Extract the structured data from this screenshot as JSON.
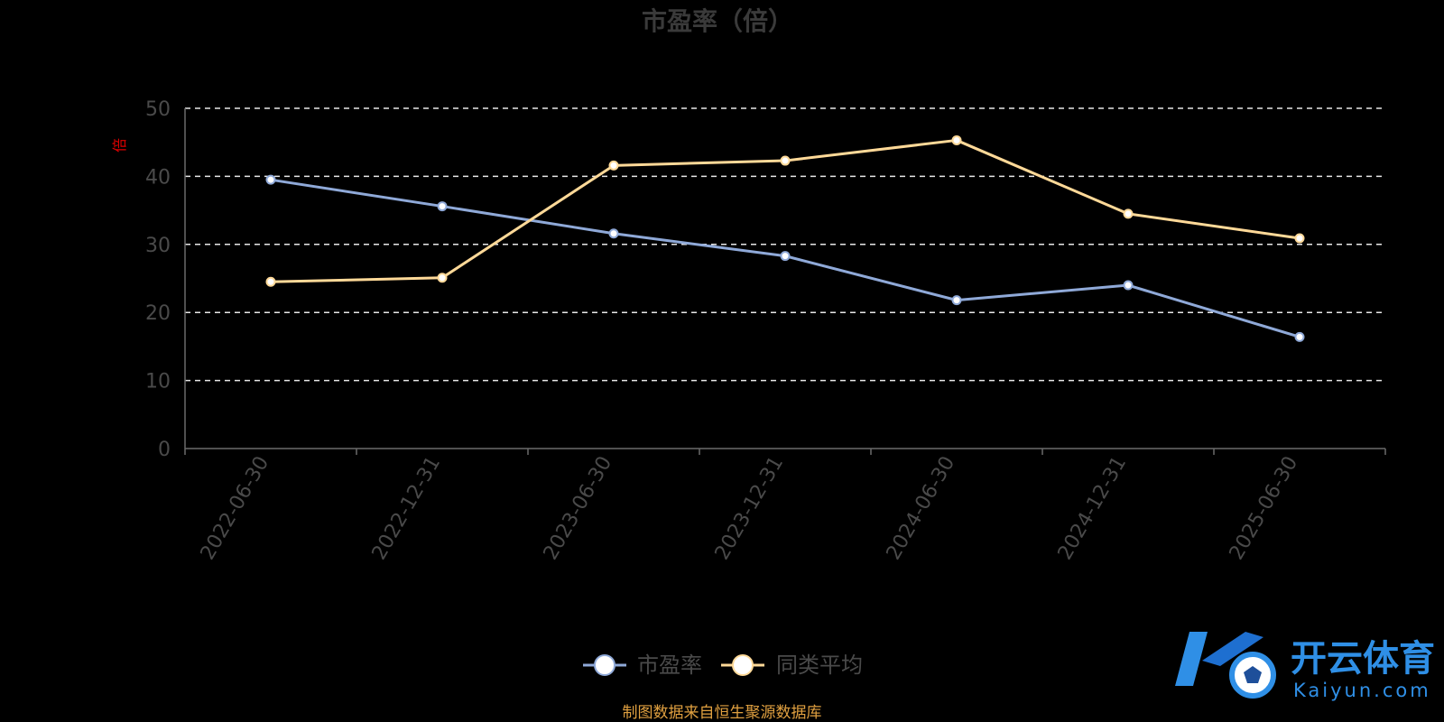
{
  "chart_data": {
    "type": "line",
    "title": "市盈率（倍）",
    "ylabel": "倍",
    "ylim": [
      0,
      50
    ],
    "yticks": [
      0,
      10,
      20,
      30,
      40,
      50
    ],
    "categories": [
      "2022-06-30",
      "2022-12-31",
      "2023-06-30",
      "2023-12-31",
      "2024-06-30",
      "2024-12-31",
      "2025-06-30"
    ],
    "grid": true,
    "legend_position": "bottom",
    "series": [
      {
        "name": "市盈率",
        "values": [
          39.5,
          35.6,
          31.6,
          28.3,
          21.8,
          24.0,
          16.4
        ],
        "color": "#8fa9d8"
      },
      {
        "name": "同类平均",
        "values": [
          24.5,
          25.1,
          41.6,
          42.3,
          45.3,
          34.5,
          30.9
        ],
        "color": "#ffd998"
      }
    ]
  },
  "source_note": "制图数据来自恒生聚源数据库",
  "watermark": {
    "cn": "开云体育",
    "en": "Kaiyun.com"
  }
}
